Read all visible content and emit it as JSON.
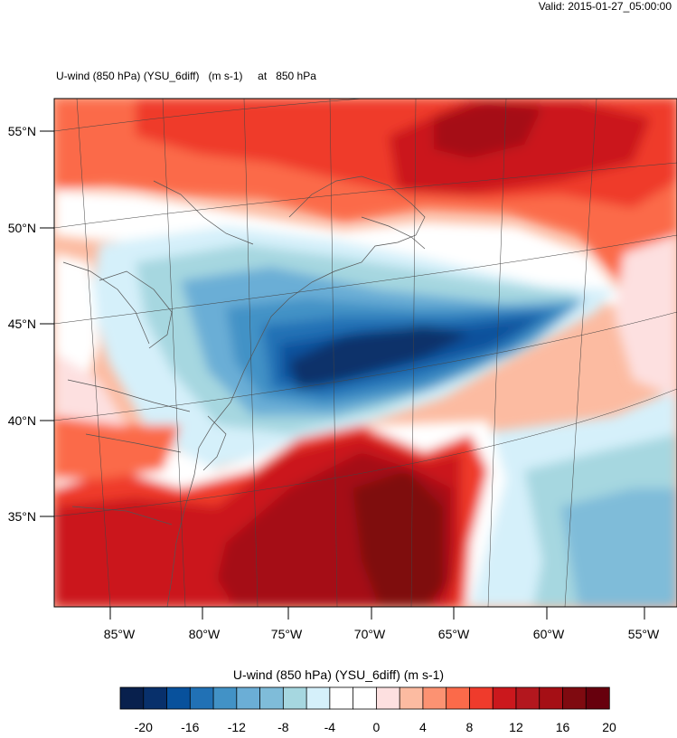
{
  "header": {
    "valid_time": "Valid: 2015-01-27_05:00:00",
    "plot_title": "U-wind (850 hPa) (YSU_6diff)   (m s-1)     at   850 hPa"
  },
  "map": {
    "lat_labels": [
      "55°N",
      "50°N",
      "45°N",
      "40°N",
      "35°N"
    ],
    "lon_labels": [
      "85°W",
      "80°W",
      "75°W",
      "70°W",
      "65°W",
      "60°W",
      "55°W"
    ],
    "features": [
      "u-wind-field",
      "coastlines",
      "state-borders",
      "lat-lon-grid"
    ]
  },
  "colorbar": {
    "title": "U-wind (850 hPa) (YSU_6diff)  (m s-1)",
    "tick_labels": [
      "-20",
      "-16",
      "-12",
      "-8",
      "-4",
      "0",
      "4",
      "8",
      "12",
      "16",
      "20"
    ],
    "colors": [
      "#08204d",
      "#08306b",
      "#08519c",
      "#2171b5",
      "#4292c6",
      "#6baed6",
      "#7fbcd9",
      "#a6d7e0",
      "#d5f0fa",
      "#ffffff",
      "#ffffff",
      "#fde0e0",
      "#fcbba1",
      "#fc9272",
      "#fb6a4a",
      "#ef3b2c",
      "#cb181d",
      "#b3171e",
      "#a50f15",
      "#7f0a10",
      "#67000d"
    ]
  }
}
